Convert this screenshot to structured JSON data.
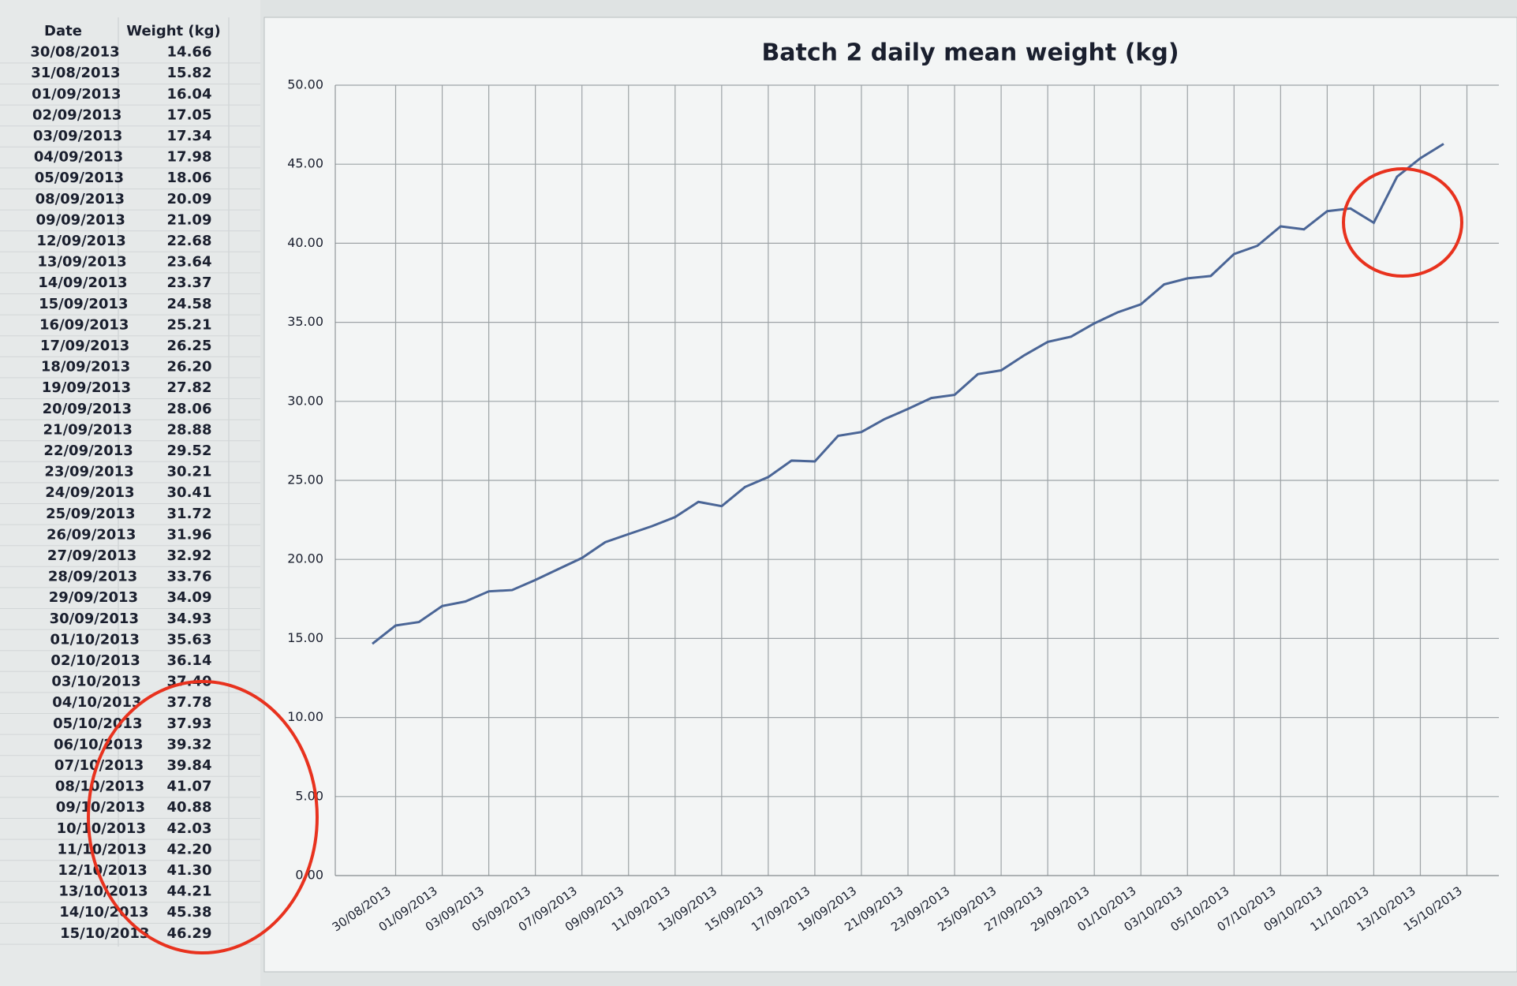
{
  "table": {
    "header": [
      "Date",
      "Weight (kg)"
    ],
    "rows": [
      [
        "30/08/2013",
        "14.66"
      ],
      [
        "31/08/2013",
        "15.82"
      ],
      [
        "01/09/2013",
        "16.04"
      ],
      [
        "02/09/2013",
        "17.05"
      ],
      [
        "03/09/2013",
        "17.34"
      ],
      [
        "04/09/2013",
        "17.98"
      ],
      [
        "05/09/2013",
        "18.06"
      ],
      [
        "08/09/2013",
        "20.09"
      ],
      [
        "09/09/2013",
        "21.09"
      ],
      [
        "12/09/2013",
        "22.68"
      ],
      [
        "13/09/2013",
        "23.64"
      ],
      [
        "14/09/2013",
        "23.37"
      ],
      [
        "15/09/2013",
        "24.58"
      ],
      [
        "16/09/2013",
        "25.21"
      ],
      [
        "17/09/2013",
        "26.25"
      ],
      [
        "18/09/2013",
        "26.20"
      ],
      [
        "19/09/2013",
        "27.82"
      ],
      [
        "20/09/2013",
        "28.06"
      ],
      [
        "21/09/2013",
        "28.88"
      ],
      [
        "22/09/2013",
        "29.52"
      ],
      [
        "23/09/2013",
        "30.21"
      ],
      [
        "24/09/2013",
        "30.41"
      ],
      [
        "25/09/2013",
        "31.72"
      ],
      [
        "26/09/2013",
        "31.96"
      ],
      [
        "27/09/2013",
        "32.92"
      ],
      [
        "28/09/2013",
        "33.76"
      ],
      [
        "29/09/2013",
        "34.09"
      ],
      [
        "30/09/2013",
        "34.93"
      ],
      [
        "01/10/2013",
        "35.63"
      ],
      [
        "02/10/2013",
        "36.14"
      ],
      [
        "03/10/2013",
        "37.40"
      ],
      [
        "04/10/2013",
        "37.78"
      ],
      [
        "05/10/2013",
        "37.93"
      ],
      [
        "06/10/2013",
        "39.32"
      ],
      [
        "07/10/2013",
        "39.84"
      ],
      [
        "08/10/2013",
        "41.07"
      ],
      [
        "09/10/2013",
        "40.88"
      ],
      [
        "10/10/2013",
        "42.03"
      ],
      [
        "11/10/2013",
        "42.20"
      ],
      [
        "12/10/2013",
        "41.30"
      ],
      [
        "13/10/2013",
        "44.21"
      ],
      [
        "14/10/2013",
        "45.38"
      ],
      [
        "15/10/2013",
        "46.29"
      ]
    ]
  },
  "chart_data": {
    "type": "line",
    "title": "Batch 2 daily mean weight (kg)",
    "categories": [
      "30/08/2013",
      null,
      "01/09/2013",
      null,
      "03/09/2013",
      null,
      "05/09/2013",
      null,
      "07/09/2013",
      null,
      "09/09/2013",
      null,
      "11/09/2013",
      null,
      "13/09/2013",
      null,
      "15/09/2013",
      null,
      "17/09/2013",
      null,
      "19/09/2013",
      null,
      "21/09/2013",
      null,
      "23/09/2013",
      null,
      "25/09/2013",
      null,
      "27/09/2013",
      null,
      "29/09/2013",
      null,
      "01/10/2013",
      null,
      "03/10/2013",
      null,
      "05/10/2013",
      null,
      "07/10/2013",
      null,
      "09/10/2013",
      null,
      "11/10/2013",
      null,
      "13/10/2013",
      null,
      "15/10/2013"
    ],
    "values": [
      14.66,
      15.82,
      16.04,
      17.05,
      17.34,
      17.98,
      18.06,
      18.7,
      19.4,
      20.09,
      21.09,
      21.6,
      22.1,
      22.68,
      23.64,
      23.37,
      24.58,
      25.21,
      26.25,
      26.2,
      27.82,
      28.06,
      28.88,
      29.52,
      30.21,
      30.41,
      31.72,
      31.96,
      32.92,
      33.76,
      34.09,
      34.93,
      35.63,
      36.14,
      37.4,
      37.78,
      37.93,
      39.32,
      39.84,
      41.07,
      40.88,
      42.03,
      42.2,
      41.3,
      44.21,
      45.38,
      46.29
    ],
    "color": "#4a6596",
    "ylim": [
      0,
      50
    ],
    "yticks": [
      {
        "value": 0,
        "label": "0.00"
      },
      {
        "value": 5,
        "label": "5.00"
      },
      {
        "value": 10,
        "label": "10.00"
      },
      {
        "value": 15,
        "label": "15.00"
      },
      {
        "value": 20,
        "label": "20.00"
      },
      {
        "value": 25,
        "label": "25.00"
      },
      {
        "value": 30,
        "label": "30.00"
      },
      {
        "value": 35,
        "label": "35.00"
      },
      {
        "value": 40,
        "label": "40.00"
      },
      {
        "value": 45,
        "label": "45.00"
      },
      {
        "value": 50,
        "label": "50.00"
      }
    ],
    "grid": true
  }
}
